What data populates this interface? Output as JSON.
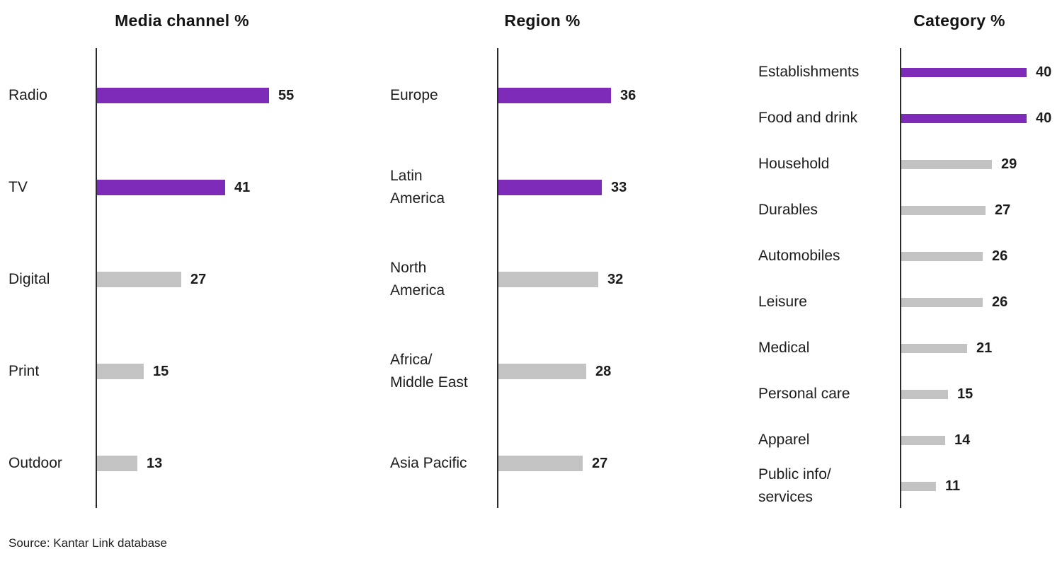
{
  "page": {
    "source": "Source: Kantar Link database"
  },
  "colors": {
    "bar_highlight_purple": "#7E2BB9",
    "bar_default_gray": "#C3C3C3",
    "text": "#1C1C1C",
    "axis": "#2B2B2B"
  },
  "chart_data": [
    {
      "type": "bar",
      "orientation": "horizontal",
      "title": "Media channel %",
      "categories": [
        "Radio",
        "TV",
        "Digital",
        "Print",
        "Outdoor"
      ],
      "values": [
        55,
        41,
        27,
        15,
        13
      ],
      "highlighted": [
        true,
        true,
        false,
        false,
        false
      ],
      "xlabel": "",
      "ylabel": "",
      "xlim": [
        0,
        60
      ],
      "grid": false,
      "legend": "none",
      "data_labels": "end-of-bar"
    },
    {
      "type": "bar",
      "orientation": "horizontal",
      "title": "Region %",
      "categories": [
        "Europe",
        "Latin\nAmerica",
        "North\nAmerica",
        "Africa/\nMiddle East",
        "Asia Pacific"
      ],
      "values": [
        36,
        33,
        32,
        28,
        27
      ],
      "highlighted": [
        true,
        true,
        false,
        false,
        false
      ],
      "xlabel": "",
      "ylabel": "",
      "xlim": [
        0,
        60
      ],
      "grid": false,
      "legend": "none",
      "data_labels": "end-of-bar"
    },
    {
      "type": "bar",
      "orientation": "horizontal",
      "title": "Category %",
      "categories": [
        "Establishments",
        "Food and drink",
        "Household",
        "Durables",
        "Automobiles",
        "Leisure",
        "Medical",
        "Personal care",
        "Apparel",
        "Public info/\nservices"
      ],
      "values": [
        40,
        40,
        29,
        27,
        26,
        26,
        21,
        15,
        14,
        11
      ],
      "highlighted": [
        true,
        true,
        false,
        false,
        false,
        false,
        false,
        false,
        false,
        false
      ],
      "xlabel": "",
      "ylabel": "",
      "xlim": [
        0,
        60
      ],
      "grid": false,
      "legend": "none",
      "data_labels": "end-of-bar"
    }
  ]
}
